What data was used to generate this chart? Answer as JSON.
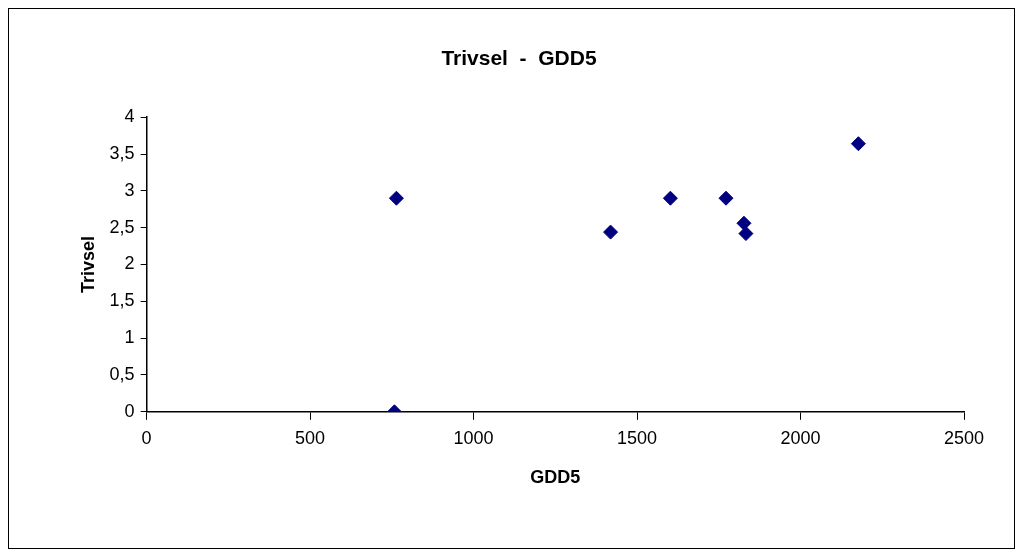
{
  "chart_data": {
    "type": "scatter",
    "title": "Trivsel  -  GDD5",
    "xlabel": "GDD5",
    "ylabel": "Trivsel",
    "series": [
      {
        "color": "#000080",
        "x": [
          758,
          764,
          1419,
          1602,
          1772,
          1827,
          1833,
          2177
        ],
        "values": [
          0,
          2.9,
          2.44,
          2.9,
          2.9,
          2.56,
          2.42,
          3.64
        ]
      }
    ],
    "xlim": [
      0,
      2500
    ],
    "xticks": [
      0,
      500,
      1000,
      1500,
      2000,
      2500
    ],
    "ylim": [
      0,
      4
    ],
    "yticks": [
      0,
      {
        "value": 0.5,
        "label": "0,5"
      },
      1,
      {
        "value": 1.5,
        "label": "1,5"
      },
      2,
      {
        "value": 2.5,
        "label": "2,5"
      },
      3,
      {
        "value": 3.5,
        "label": "3,5"
      },
      4
    ],
    "marker": "diamond",
    "grid": false,
    "legend": false
  }
}
